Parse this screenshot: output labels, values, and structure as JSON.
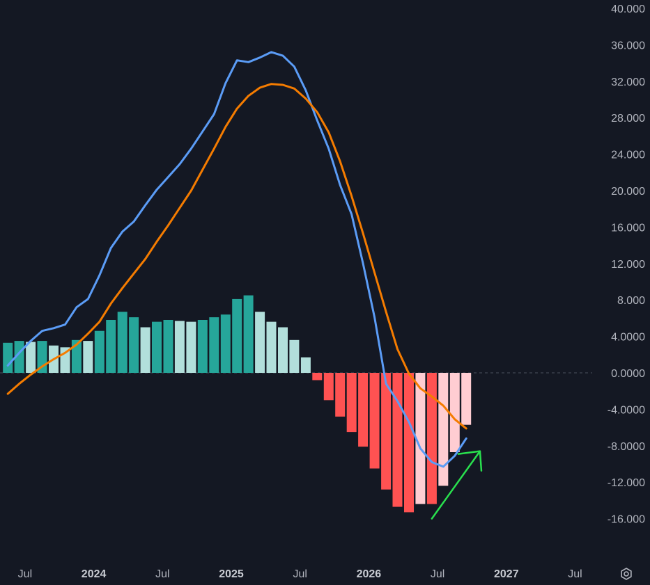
{
  "chart_data": {
    "type": "bar",
    "title": "",
    "ylim": [
      -16,
      40
    ],
    "y_ticks": [
      "40.000",
      "36.000",
      "32.000",
      "28.000",
      "24.000",
      "20.000",
      "16.000",
      "12.000",
      "8.000",
      "4.0000",
      "0.0000",
      "-4.0000",
      "-8.0000",
      "-12.000",
      "-16.000"
    ],
    "x_ticks": [
      {
        "label": "Jul",
        "bold": false
      },
      {
        "label": "2024",
        "bold": true
      },
      {
        "label": "Jul",
        "bold": false
      },
      {
        "label": "2025",
        "bold": true
      },
      {
        "label": "Jul",
        "bold": false
      },
      {
        "label": "2026",
        "bold": true
      },
      {
        "label": "Jul",
        "bold": false
      },
      {
        "label": "2027",
        "bold": true
      },
      {
        "label": "Jul",
        "bold": false
      }
    ],
    "x_tick_index": [
      1.5,
      7.5,
      13.5,
      19.5,
      25.5,
      31.5,
      37.5,
      43.5,
      49.5
    ],
    "histogram": {
      "values": [
        3.3,
        3.5,
        3.4,
        3.5,
        3.0,
        2.8,
        3.6,
        3.5,
        4.6,
        5.8,
        6.7,
        6.1,
        5.0,
        5.6,
        5.8,
        5.7,
        5.6,
        5.8,
        6.1,
        6.4,
        8.1,
        8.5,
        6.7,
        5.6,
        5.0,
        3.6,
        1.7,
        -0.8,
        -3.0,
        -4.8,
        -6.5,
        -8.1,
        -10.5,
        -12.8,
        -14.7,
        -15.3,
        -14.4,
        -14.4,
        -12.4,
        -8.7,
        -5.7
      ],
      "states": [
        "dark",
        "dark",
        "light",
        "dark",
        "light",
        "light",
        "dark",
        "light",
        "dark",
        "dark",
        "dark",
        "dark",
        "light",
        "dark",
        "dark",
        "light",
        "light",
        "dark",
        "dark",
        "dark",
        "dark",
        "dark",
        "light",
        "light",
        "light",
        "light",
        "light",
        "dark",
        "dark",
        "dark",
        "dark",
        "dark",
        "dark",
        "dark",
        "dark",
        "dark",
        "light",
        "dark",
        "light",
        "light",
        "light"
      ]
    },
    "series": [
      {
        "color": "#5b9cf6",
        "values": [
          0.8,
          2.2,
          3.5,
          4.6,
          4.9,
          5.3,
          7.2,
          8.1,
          10.7,
          13.7,
          15.5,
          16.6,
          18.4,
          20.1,
          21.5,
          22.9,
          24.6,
          26.5,
          28.4,
          31.8,
          34.3,
          34.1,
          34.6,
          35.2,
          34.8,
          33.6,
          31.0,
          27.7,
          24.6,
          20.6,
          17.4,
          12.0,
          6.1,
          -1.2,
          -3.1,
          -5.4,
          -8.3,
          -9.8,
          -10.3,
          -9.1,
          -7.2
        ]
      },
      {
        "color": "#f57c00",
        "values": [
          -2.3,
          -1.2,
          -0.2,
          0.7,
          1.5,
          2.2,
          3.1,
          4.3,
          5.6,
          7.6,
          9.3,
          10.9,
          12.5,
          14.4,
          16.2,
          18.1,
          20.0,
          22.3,
          24.6,
          27.0,
          29.0,
          30.4,
          31.3,
          31.7,
          31.6,
          31.2,
          30.1,
          28.6,
          26.4,
          23.2,
          19.4,
          15.3,
          11.0,
          6.7,
          2.6,
          -0.1,
          -1.7,
          -2.6,
          -3.6,
          -5.1,
          -6.1
        ]
      }
    ],
    "colors": {
      "positive_dark": "#26a69a",
      "positive_light": "#b2dfdb",
      "negative_dark": "#ff5252",
      "negative_light": "#ffcdd2",
      "background": "#141823",
      "zero_line": "#4a4f5c",
      "tick_text": "#b2b5be",
      "annotation_arrow": "#29e04e"
    },
    "annotations": [
      {
        "type": "arrow",
        "color": "#29e04e",
        "from_index": 37,
        "from_y": -16.0,
        "to_index": 41.2,
        "to_y": -8.6,
        "orientation": "up-right"
      }
    ]
  },
  "controls": {
    "settings_icon": "gear-icon"
  }
}
